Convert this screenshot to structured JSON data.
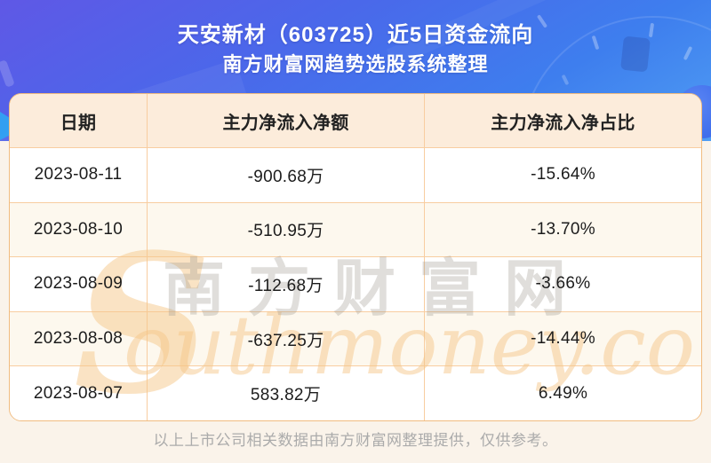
{
  "header": {
    "title_line1": "天安新材（603725）近5日资金流向",
    "title_line2": "南方财富网趋势选股系统整理"
  },
  "table": {
    "columns": [
      "日期",
      "主力净流入净额",
      "主力净流入净占比"
    ],
    "rows": [
      {
        "date": "2023-08-11",
        "amount": "-900.68万",
        "ratio": "-15.64%"
      },
      {
        "date": "2023-08-10",
        "amount": "-510.95万",
        "ratio": "-13.70%"
      },
      {
        "date": "2023-08-09",
        "amount": "-112.68万",
        "ratio": "-3.66%"
      },
      {
        "date": "2023-08-08",
        "amount": "-637.25万",
        "ratio": "-14.44%"
      },
      {
        "date": "2023-08-07",
        "amount": "583.82万",
        "ratio": "6.49%"
      }
    ]
  },
  "watermark": {
    "initial": "S",
    "script": "outhmoney.com",
    "cn": "南方财富网"
  },
  "footer": {
    "note": "以上上市公司相关数据由南方财富网整理提供，仅供参考。"
  },
  "colors": {
    "page-bg": "#faf3ea",
    "hero-a": "#5f58e6",
    "hero-b": "#4a68ea",
    "hero-c": "#3e7eee",
    "hero-d": "#4f9df3",
    "card-border": "#f1bc80",
    "grid": "#f8cda0",
    "head-bg": "#fcecdb",
    "row-alt": "#fdf8ee",
    "ink": "#1c1c1c",
    "footer-ink": "#ababab"
  },
  "chart_data": {
    "type": "table",
    "title": "天安新材（603725）近5日资金流向",
    "subtitle": "南方财富网趋势选股系统整理",
    "columns": [
      "日期",
      "主力净流入净额",
      "主力净流入净占比"
    ],
    "categories": [
      "2023-08-11",
      "2023-08-10",
      "2023-08-09",
      "2023-08-08",
      "2023-08-07"
    ],
    "series": [
      {
        "name": "主力净流入净额",
        "unit": "万",
        "values": [
          -900.68,
          -510.95,
          -112.68,
          -637.25,
          583.82
        ]
      },
      {
        "name": "主力净流入净占比",
        "unit": "%",
        "values": [
          -15.64,
          -13.7,
          -3.66,
          -14.44,
          6.49
        ]
      }
    ],
    "source_note": "以上上市公司相关数据由南方财富网整理提供，仅供参考。"
  }
}
